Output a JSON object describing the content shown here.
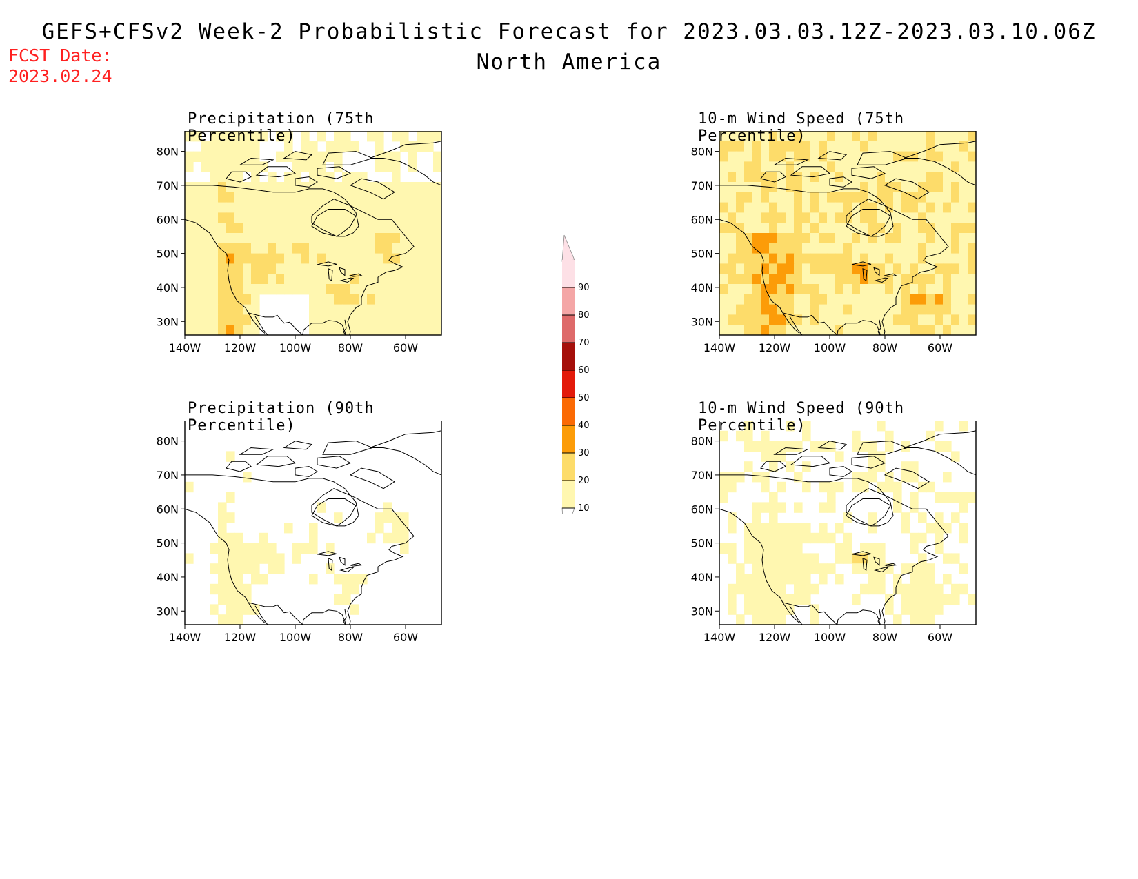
{
  "header": {
    "title": "GEFS+CFSv2 Week-2 Probabilistic Forecast for 2023.03.03.12Z-2023.03.10.06Z",
    "subtitle": "North America",
    "fcst_label": "FCST Date:",
    "fcst_date": "2023.02.24"
  },
  "colors": {
    "fcst_text": "#ff2020",
    "shading": [
      "#ffffff",
      "#fff7b0",
      "#fddc6a",
      "#fc9c08",
      "#fb6a04",
      "#e31a0a",
      "#a50f0a",
      "#de6a6a",
      "#f4a6a6",
      "#fde0e6"
    ]
  },
  "axes": {
    "lat_labels": [
      "80N",
      "70N",
      "60N",
      "50N",
      "40N",
      "30N"
    ],
    "lon_labels": [
      "140W",
      "120W",
      "100W",
      "80W",
      "60W"
    ]
  },
  "colorbar": {
    "levels": [
      "90",
      "80",
      "70",
      "60",
      "50",
      "40",
      "30",
      "20",
      "10"
    ]
  },
  "panels": [
    {
      "title": "Precipitation (75th Percentile)",
      "variable": "precipitation",
      "percentile": "75th",
      "intensity": "high"
    },
    {
      "title": "10-m Wind Speed (75th Percentile)",
      "variable": "wind",
      "percentile": "75th",
      "intensity": "high"
    },
    {
      "title": "Precipitation (90th Percentile)",
      "variable": "precipitation",
      "percentile": "90th",
      "intensity": "low"
    },
    {
      "title": "10-m Wind Speed (90th Percentile)",
      "variable": "wind",
      "percentile": "90th",
      "intensity": "low"
    }
  ]
}
